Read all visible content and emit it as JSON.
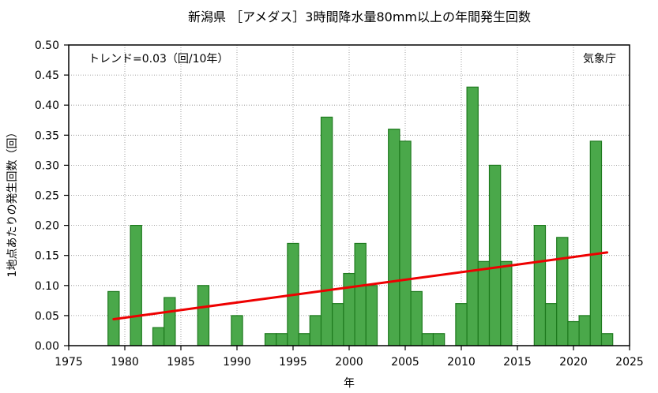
{
  "chart_data": {
    "type": "bar",
    "title": "新潟県 ［アメダス］3時間降水量80mm以上の年間発生回数",
    "xlabel": "年",
    "ylabel": "1地点あたりの発生回数（回）",
    "trend_label": "トレンド=0.03（回/10年）",
    "source_label": "気象庁",
    "xlim": [
      1975,
      2025
    ],
    "ylim": [
      0,
      0.5
    ],
    "x_ticks": [
      1975,
      1980,
      1985,
      1990,
      1995,
      2000,
      2005,
      2010,
      2015,
      2020,
      2025
    ],
    "x_tick_labels": [
      "1975",
      "1980",
      "1985",
      "1990",
      "1995",
      "2000",
      "2005",
      "2010",
      "2015",
      "2020",
      "2025"
    ],
    "y_ticks": [
      0,
      0.05,
      0.1,
      0.15,
      0.2,
      0.25,
      0.3,
      0.35,
      0.4,
      0.45,
      0.5
    ],
    "y_tick_labels": [
      "0.00",
      "0.05",
      "0.10",
      "0.15",
      "0.20",
      "0.25",
      "0.30",
      "0.35",
      "0.40",
      "0.45",
      "0.50"
    ],
    "grid": true,
    "x": [
      1979,
      1980,
      1981,
      1982,
      1983,
      1984,
      1985,
      1986,
      1987,
      1988,
      1989,
      1990,
      1991,
      1992,
      1993,
      1994,
      1995,
      1996,
      1997,
      1998,
      1999,
      2000,
      2001,
      2002,
      2003,
      2004,
      2005,
      2006,
      2007,
      2008,
      2009,
      2010,
      2011,
      2012,
      2013,
      2014,
      2015,
      2016,
      2017,
      2018,
      2019,
      2020,
      2021,
      2022,
      2023
    ],
    "values": [
      0.09,
      0,
      0.2,
      0,
      0.03,
      0.08,
      0,
      0,
      0.1,
      0,
      0,
      0.05,
      0,
      0,
      0.02,
      0.02,
      0.17,
      0.02,
      0.05,
      0.38,
      0.07,
      0.12,
      0.17,
      0.1,
      0,
      0.36,
      0.34,
      0.09,
      0.02,
      0.02,
      0,
      0.07,
      0.43,
      0.14,
      0.3,
      0.14,
      0,
      0,
      0.2,
      0.07,
      0.18,
      0.04,
      0.05,
      0.34,
      0.02
    ],
    "trend": {
      "x": [
        1979,
        2023
      ],
      "y": [
        0.044,
        0.155
      ]
    },
    "colors": {
      "bar_fill": "#4aa84a",
      "bar_stroke": "#1e7a1e",
      "trend": "#ee0000"
    }
  }
}
